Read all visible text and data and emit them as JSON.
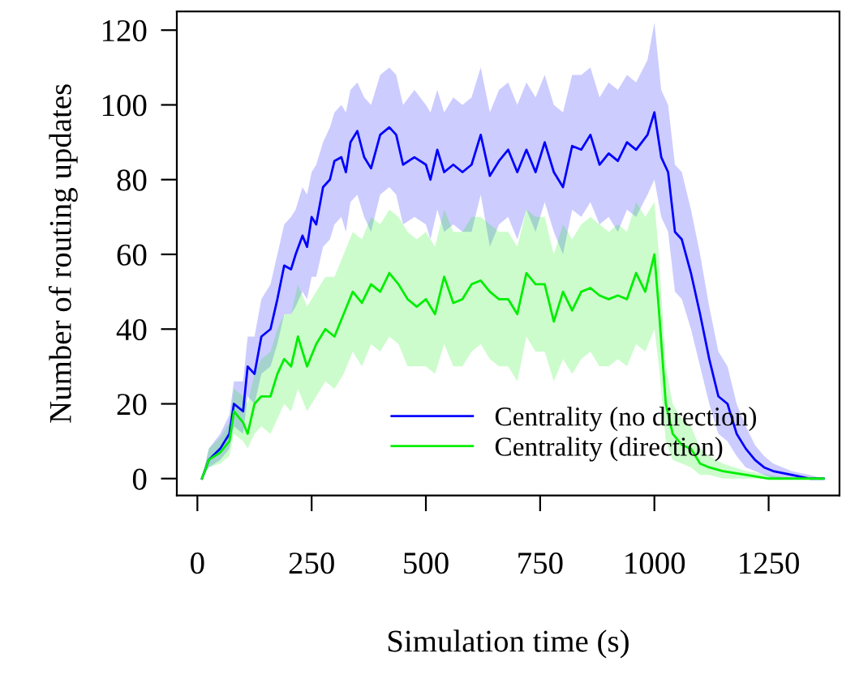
{
  "chart_data": {
    "type": "line",
    "xlabel": "Simulation time (s)",
    "ylabel": "Number of routing updates",
    "xlim": [
      -45,
      1405
    ],
    "ylim": [
      -4.5,
      125
    ],
    "xticks": [
      0,
      250,
      500,
      750,
      1000,
      1250
    ],
    "yticks": [
      0,
      20,
      40,
      60,
      80,
      100,
      120
    ],
    "grid": false,
    "legend": "bottom",
    "line_style": "solid",
    "marker": "none",
    "series": [
      {
        "name": "Centrality (no direction)",
        "color": "#0000ff",
        "x": [
          10,
          25,
          50,
          70,
          80,
          100,
          110,
          125,
          140,
          160,
          175,
          190,
          205,
          215,
          230,
          240,
          250,
          260,
          275,
          290,
          300,
          315,
          325,
          335,
          350,
          365,
          380,
          400,
          420,
          435,
          450,
          475,
          500,
          510,
          525,
          540,
          560,
          580,
          600,
          620,
          640,
          660,
          680,
          700,
          720,
          740,
          760,
          780,
          800,
          820,
          840,
          860,
          880,
          900,
          920,
          940,
          960,
          985,
          1000,
          1015,
          1030,
          1045,
          1060,
          1080,
          1100,
          1120,
          1140,
          1160,
          1180,
          1200,
          1220,
          1240,
          1260,
          1300,
          1340,
          1370
        ],
        "values": [
          0,
          5,
          8,
          12,
          20,
          18,
          30,
          28,
          38,
          40,
          48,
          57,
          56,
          60,
          65,
          62,
          70,
          68,
          78,
          80,
          85,
          86,
          82,
          90,
          93,
          86,
          83,
          92,
          94,
          92,
          84,
          86,
          84,
          80,
          88,
          82,
          84,
          82,
          84,
          92,
          81,
          85,
          88,
          82,
          88,
          82,
          90,
          82,
          78,
          89,
          88,
          92,
          84,
          87,
          85,
          90,
          88,
          92,
          98,
          86,
          82,
          66,
          64,
          55,
          44,
          32,
          22,
          20,
          12,
          8,
          5,
          3,
          2,
          1,
          0,
          0
        ],
        "lower": [
          0,
          3,
          5,
          8,
          14,
          12,
          22,
          20,
          28,
          30,
          36,
          44,
          44,
          46,
          50,
          48,
          54,
          54,
          62,
          64,
          68,
          70,
          66,
          74,
          76,
          70,
          66,
          76,
          78,
          76,
          68,
          70,
          68,
          64,
          72,
          66,
          68,
          66,
          66,
          76,
          62,
          68,
          70,
          64,
          72,
          66,
          74,
          66,
          60,
          72,
          70,
          74,
          68,
          70,
          66,
          72,
          70,
          76,
          80,
          70,
          66,
          50,
          48,
          40,
          30,
          20,
          12,
          10,
          6,
          3,
          2,
          1,
          0,
          0,
          0,
          0
        ],
        "upper": [
          0,
          8,
          12,
          17,
          26,
          26,
          38,
          38,
          48,
          52,
          60,
          68,
          70,
          72,
          78,
          76,
          82,
          84,
          90,
          94,
          98,
          100,
          98,
          104,
          106,
          102,
          100,
          108,
          110,
          108,
          100,
          104,
          100,
          98,
          104,
          98,
          102,
          100,
          102,
          110,
          98,
          104,
          106,
          100,
          106,
          102,
          108,
          100,
          98,
          108,
          108,
          110,
          102,
          106,
          104,
          108,
          106,
          112,
          122,
          104,
          100,
          84,
          82,
          72,
          60,
          46,
          34,
          30,
          20,
          14,
          9,
          6,
          4,
          2,
          1,
          0
        ]
      },
      {
        "name": "Centrality (direction)",
        "color": "#00ee00",
        "x": [
          10,
          25,
          50,
          70,
          80,
          100,
          110,
          125,
          140,
          160,
          175,
          190,
          205,
          220,
          240,
          260,
          280,
          300,
          320,
          340,
          360,
          380,
          400,
          420,
          440,
          460,
          480,
          500,
          520,
          540,
          560,
          580,
          600,
          620,
          640,
          660,
          680,
          700,
          720,
          740,
          760,
          780,
          800,
          820,
          840,
          860,
          880,
          900,
          920,
          940,
          960,
          980,
          1000,
          1010,
          1025,
          1040,
          1060,
          1080,
          1100,
          1120,
          1150,
          1200,
          1250,
          1300,
          1370
        ],
        "values": [
          0,
          5,
          7,
          10,
          18,
          15,
          12,
          20,
          22,
          22,
          28,
          32,
          30,
          38,
          30,
          36,
          40,
          38,
          44,
          50,
          47,
          52,
          50,
          55,
          52,
          48,
          46,
          48,
          44,
          54,
          47,
          48,
          52,
          53,
          50,
          48,
          48,
          44,
          55,
          52,
          52,
          42,
          50,
          45,
          50,
          51,
          49,
          48,
          49,
          48,
          55,
          50,
          60,
          45,
          20,
          12,
          9,
          8,
          4,
          3,
          2,
          1,
          0,
          0,
          0
        ],
        "lower": [
          0,
          3,
          4,
          6,
          12,
          10,
          8,
          12,
          14,
          12,
          16,
          20,
          18,
          24,
          18,
          22,
          26,
          24,
          28,
          34,
          30,
          36,
          34,
          38,
          36,
          30,
          30,
          30,
          28,
          36,
          30,
          30,
          34,
          36,
          32,
          30,
          30,
          26,
          38,
          34,
          34,
          26,
          32,
          28,
          32,
          34,
          30,
          30,
          32,
          30,
          36,
          34,
          40,
          30,
          10,
          5,
          4,
          3,
          1,
          1,
          0,
          0,
          0,
          0,
          0
        ],
        "upper": [
          0,
          8,
          11,
          15,
          24,
          22,
          20,
          28,
          32,
          34,
          40,
          44,
          44,
          52,
          46,
          50,
          54,
          54,
          60,
          66,
          64,
          70,
          68,
          72,
          70,
          66,
          64,
          66,
          62,
          72,
          66,
          66,
          70,
          70,
          68,
          66,
          66,
          62,
          72,
          70,
          70,
          60,
          68,
          64,
          68,
          70,
          68,
          66,
          68,
          66,
          74,
          70,
          74,
          60,
          30,
          20,
          16,
          14,
          8,
          6,
          4,
          2,
          1,
          0,
          0
        ]
      }
    ]
  }
}
